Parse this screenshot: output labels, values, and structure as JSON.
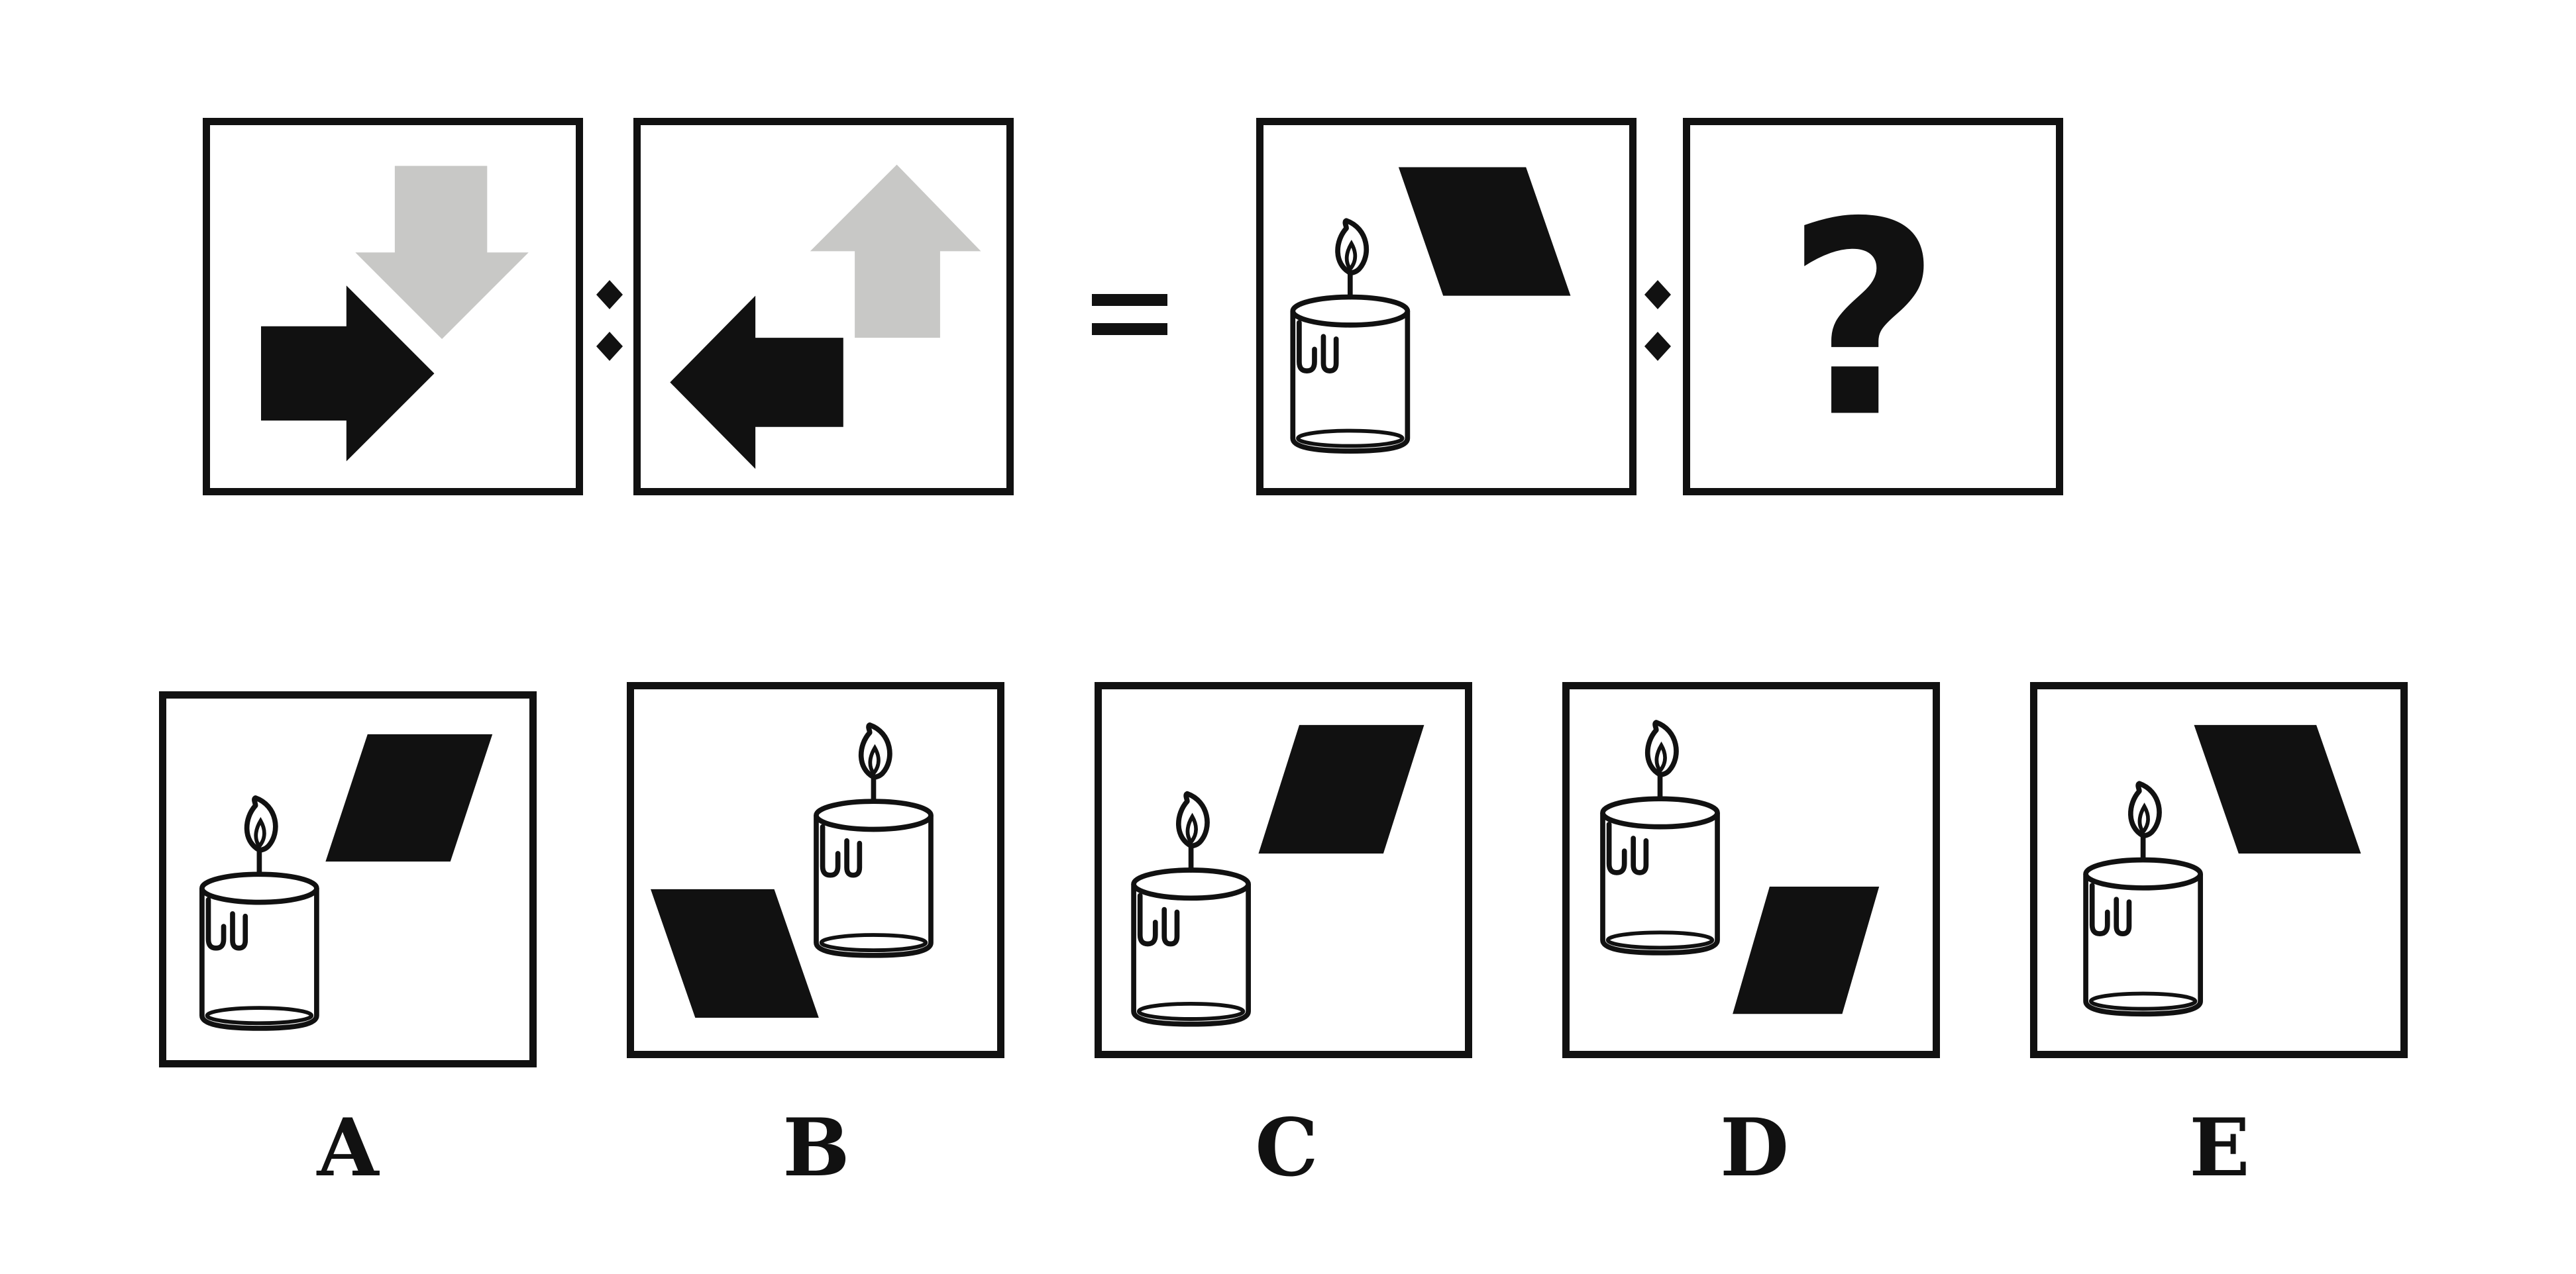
{
  "puzzle": {
    "question_mark": "?",
    "options": [
      {
        "key": "a",
        "label": "A"
      },
      {
        "key": "b",
        "label": "B"
      },
      {
        "key": "c",
        "label": "C"
      },
      {
        "key": "d",
        "label": "D"
      },
      {
        "key": "e",
        "label": "E"
      }
    ]
  },
  "colors": {
    "ink": "#111111",
    "gray_shape": "#c8c8c6",
    "background": "#ffffff"
  },
  "icons": {
    "separator": "ratio-colon-icon",
    "equals": "equals-icon",
    "candle": "candle-icon",
    "parallelogram": "parallelogram-icon",
    "arrow_right": "arrow-right-icon",
    "arrow_down": "arrow-down-icon",
    "arrow_left": "arrow-left-icon",
    "arrow_up": "arrow-up-icon"
  }
}
